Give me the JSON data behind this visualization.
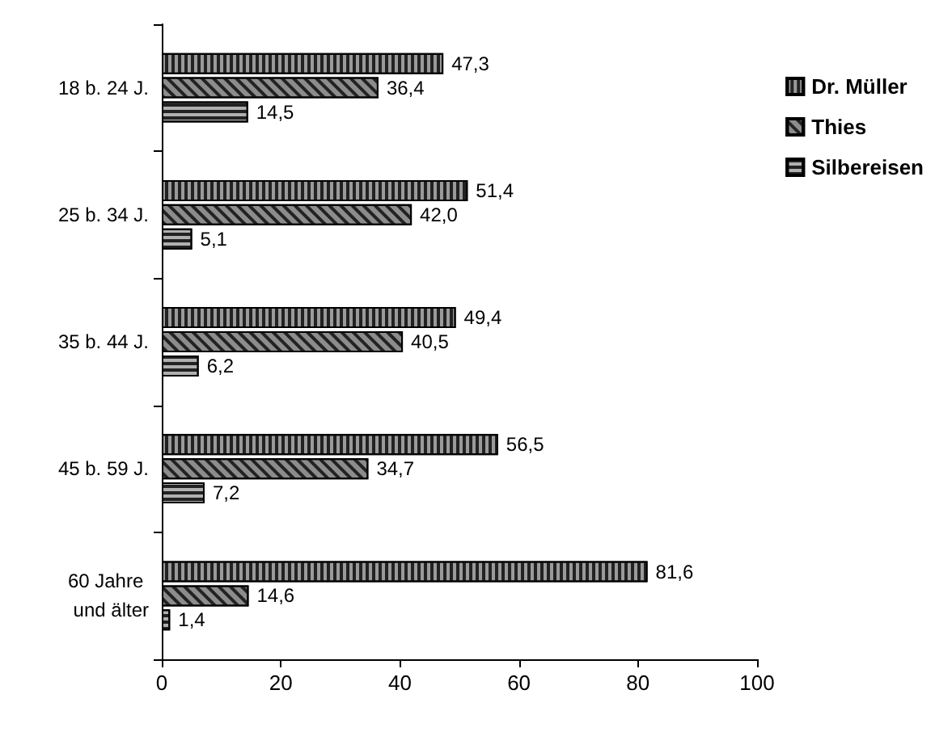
{
  "chart_data": {
    "type": "bar",
    "orientation": "horizontal",
    "categories": [
      "18 b. 24 J.",
      "25 b. 34 J.",
      "35 b. 44 J.",
      "45 b. 59 J.",
      "60 Jahre und älter"
    ],
    "series": [
      {
        "name": "Dr. Müller",
        "color": "#9a9a9a",
        "values": [
          47.3,
          51.4,
          49.4,
          56.5,
          81.6
        ],
        "value_labels": [
          "47,3",
          "51,4",
          "49,4",
          "56,5",
          "81,6"
        ]
      },
      {
        "name": "Thies",
        "color": "#8c8c8c",
        "values": [
          36.4,
          42.0,
          40.5,
          34.7,
          14.6
        ],
        "value_labels": [
          "36,4",
          "42,0",
          "40,5",
          "34,7",
          "14,6"
        ]
      },
      {
        "name": "Silbereisen",
        "color": "#b0b0b0",
        "values": [
          14.5,
          5.1,
          6.2,
          7.2,
          1.4
        ],
        "value_labels": [
          "14,5",
          "5,1",
          "6,2",
          "7,2",
          "1,4"
        ]
      }
    ],
    "xlim": [
      0,
      100
    ],
    "xticks": [
      0,
      20,
      40,
      60,
      80,
      100
    ],
    "legend": "top right",
    "grid": false
  }
}
